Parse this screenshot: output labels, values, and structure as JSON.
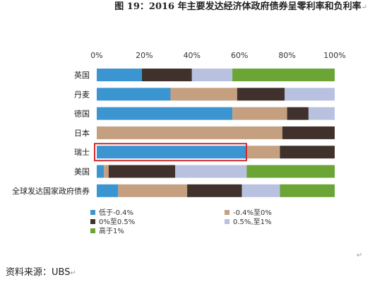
{
  "title": "图 19：2016 年主要发达经济体政府债券呈零利率和负利率",
  "paragraph_mark": "↵",
  "source": "资料来源：UBS",
  "chart_data": {
    "type": "bar",
    "stacked": "percent",
    "orientation": "horizontal",
    "categories": [
      "英国",
      "丹麦",
      "德国",
      "日本",
      "瑞士",
      "美国",
      "全球发达国家政府债券"
    ],
    "x_ticks": [
      "0%",
      "20%",
      "40%",
      "60%",
      "80%",
      "100%"
    ],
    "xlim": [
      0,
      100
    ],
    "series": [
      {
        "name": "低于-0.4%",
        "color": "#3a95d1",
        "values": [
          19,
          31,
          57,
          0,
          63,
          3,
          9
        ]
      },
      {
        "name": "-0.4%至0%",
        "color": "#c4a080",
        "values": [
          0,
          28,
          23,
          78,
          14,
          2,
          29
        ]
      },
      {
        "name": "0%至0.5%",
        "color": "#40312c",
        "values": [
          21,
          20,
          9,
          22,
          23,
          28,
          23
        ]
      },
      {
        "name": "0.5%,至1%",
        "color": "#b9c1e1",
        "values": [
          17,
          21,
          11,
          0,
          0,
          30,
          16
        ]
      },
      {
        "name": "高于1%",
        "color": "#6aa535",
        "values": [
          43,
          0,
          0,
          0,
          0,
          37,
          23
        ]
      }
    ],
    "highlight": {
      "category": "瑞士",
      "color": "#d42b2b"
    },
    "legend_position": "bottom",
    "grid": false
  }
}
